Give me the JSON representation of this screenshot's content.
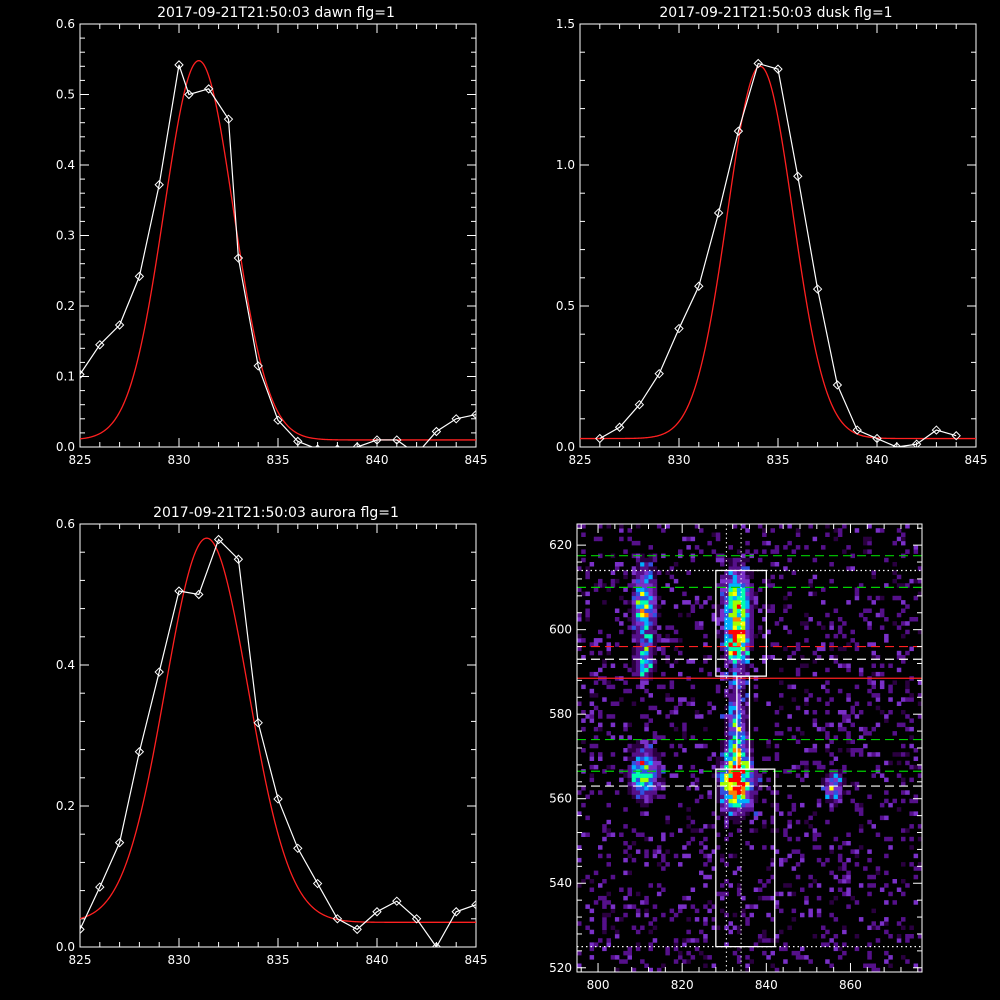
{
  "colors": {
    "background": "#000000",
    "axes": "#ffffff",
    "observed": "#ffffff",
    "fit": "#ff2020",
    "green_line": "#00d000",
    "red_line": "#ff2020",
    "white_line": "#ffffff",
    "colormap": [
      "#000000",
      "#2a0040",
      "#55108a",
      "#7a30c8",
      "#3050e0",
      "#00b0ff",
      "#00ffb0",
      "#a0ff00",
      "#ffff00",
      "#ff8000",
      "#ff0000"
    ]
  },
  "chart_data": [
    {
      "id": "dawn",
      "type": "line",
      "title": "2017-09-21T21:50:03 dawn flg=1",
      "xlim": [
        825,
        845
      ],
      "ylim": [
        0,
        0.6
      ],
      "xticks": [
        "825",
        "830",
        "835",
        "840",
        "845"
      ],
      "yticks": [
        "0.0",
        "0.1",
        "0.2",
        "0.3",
        "0.4",
        "0.5",
        "0.6"
      ],
      "series": [
        {
          "role": "observed",
          "marker": "diamond",
          "x": [
            825,
            826,
            827,
            828,
            829,
            830,
            830.5,
            831.5,
            832.5,
            833,
            834,
            835,
            836,
            837,
            838,
            839,
            840,
            841,
            842,
            843,
            844,
            845
          ],
          "values": [
            0.103,
            0.145,
            0.173,
            0.242,
            0.372,
            0.542,
            0.5,
            0.508,
            0.465,
            0.268,
            0.115,
            0.038,
            0.008,
            -0.003,
            -0.003,
            0.0,
            0.01,
            0.01,
            -0.01,
            0.022,
            0.04,
            0.046
          ]
        },
        {
          "role": "fit",
          "model": "gaussian",
          "amplitude": 0.538,
          "center": 831.0,
          "sigma": 1.75,
          "offset": 0.01
        }
      ]
    },
    {
      "id": "dusk",
      "type": "line",
      "title": "2017-09-21T21:50:03 dusk flg=1",
      "xlim": [
        825,
        845
      ],
      "ylim": [
        0,
        1.5
      ],
      "xticks": [
        "825",
        "830",
        "835",
        "840",
        "845"
      ],
      "yticks": [
        "0.0",
        "0.5",
        "1.0",
        "1.5"
      ],
      "series": [
        {
          "role": "observed",
          "marker": "diamond",
          "x": [
            826,
            827,
            828,
            829,
            830,
            831,
            832,
            833,
            834,
            835,
            836,
            837,
            838,
            839,
            840,
            841,
            842,
            843,
            844
          ],
          "values": [
            0.03,
            0.07,
            0.15,
            0.26,
            0.42,
            0.57,
            0.83,
            1.12,
            1.36,
            1.34,
            0.96,
            0.56,
            0.22,
            0.06,
            0.03,
            0.0,
            0.01,
            0.06,
            0.04
          ]
        },
        {
          "role": "fit",
          "model": "gaussian",
          "amplitude": 1.32,
          "center": 834.1,
          "sigma": 1.65,
          "offset": 0.03
        }
      ]
    },
    {
      "id": "aurora",
      "type": "line",
      "title": "2017-09-21T21:50:03 aurora flg=1",
      "xlim": [
        825,
        845
      ],
      "ylim": [
        0,
        0.6
      ],
      "xticks": [
        "825",
        "830",
        "835",
        "840",
        "845"
      ],
      "yticks": [
        "0.0",
        "0.2",
        "0.4",
        "0.6"
      ],
      "series": [
        {
          "role": "observed",
          "marker": "diamond",
          "x": [
            825,
            826,
            827,
            828,
            829,
            830,
            831,
            832,
            833,
            834,
            835,
            836,
            837,
            838,
            839,
            840,
            841,
            842,
            843,
            844,
            845
          ],
          "values": [
            0.025,
            0.085,
            0.148,
            0.277,
            0.39,
            0.505,
            0.5,
            0.578,
            0.55,
            0.318,
            0.21,
            0.14,
            0.09,
            0.04,
            0.025,
            0.05,
            0.065,
            0.04,
            0.0,
            0.05,
            0.06
          ]
        },
        {
          "role": "fit",
          "model": "gaussian",
          "amplitude": 0.545,
          "center": 831.4,
          "sigma": 2.1,
          "offset": 0.035
        }
      ]
    },
    {
      "id": "image",
      "type": "heatmap",
      "xlim": [
        795,
        877
      ],
      "ylim": [
        519,
        625
      ],
      "xticks": [
        "800",
        "820",
        "840",
        "860"
      ],
      "yticks": [
        "520",
        "540",
        "560",
        "580",
        "600",
        "620"
      ],
      "blobs": [
        {
          "x": 833,
          "y": 604,
          "sx": 2.2,
          "sy": 7,
          "amp": 0.75
        },
        {
          "x": 833,
          "y": 564,
          "sx": 2.4,
          "sy": 4.5,
          "amp": 1.0
        },
        {
          "x": 833,
          "y": 577,
          "sx": 1.6,
          "sy": 7,
          "amp": 0.45
        },
        {
          "x": 833,
          "y": 596,
          "sx": 1.6,
          "sy": 3,
          "amp": 0.4
        },
        {
          "x": 811,
          "y": 605,
          "sx": 1.8,
          "sy": 7,
          "amp": 0.55
        },
        {
          "x": 811,
          "y": 566,
          "sx": 2.2,
          "sy": 4,
          "amp": 0.6
        },
        {
          "x": 811,
          "y": 592,
          "sx": 1.4,
          "sy": 2.5,
          "amp": 0.35
        },
        {
          "x": 856,
          "y": 563,
          "sx": 1.5,
          "sy": 2.5,
          "amp": 0.45
        }
      ],
      "boxes": [
        {
          "x0": 828,
          "x1": 840,
          "y0": 589,
          "y1": 614
        },
        {
          "x0": 828,
          "x1": 842,
          "y0": 525,
          "y1": 567
        },
        {
          "x0": 833,
          "x1": 836,
          "y0": 567,
          "y1": 589
        }
      ],
      "hlines": [
        {
          "y": 617.5,
          "style": "dashed",
          "color": "green"
        },
        {
          "y": 614,
          "style": "dotted",
          "color": "white"
        },
        {
          "y": 610,
          "style": "dashed",
          "color": "green"
        },
        {
          "y": 596,
          "style": "dashed",
          "color": "red"
        },
        {
          "y": 593,
          "style": "dashed",
          "color": "white"
        },
        {
          "y": 588.5,
          "style": "solid",
          "color": "red"
        },
        {
          "y": 574,
          "style": "dashed",
          "color": "green"
        },
        {
          "y": 566.5,
          "style": "dashed",
          "color": "green"
        },
        {
          "y": 563,
          "style": "dashed",
          "color": "white"
        },
        {
          "y": 525,
          "style": "dotted",
          "color": "white"
        }
      ],
      "vlines": [
        {
          "x": 830.5,
          "style": "dotted",
          "color": "white"
        },
        {
          "x": 834,
          "style": "dotted",
          "color": "white"
        }
      ]
    }
  ]
}
